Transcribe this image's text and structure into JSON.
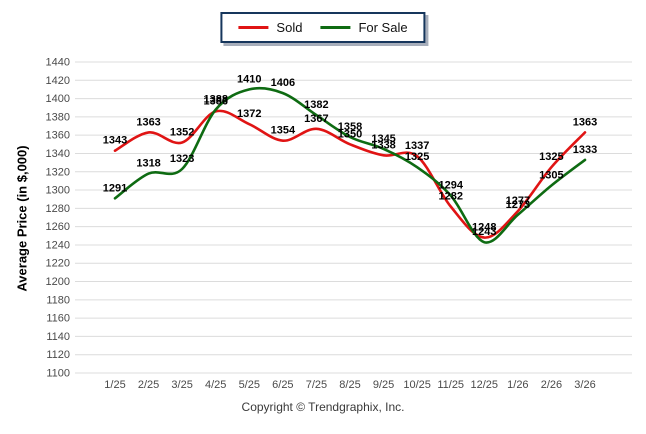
{
  "legend": {
    "items": [
      {
        "label": "Sold",
        "color": "#e01414"
      },
      {
        "label": "For Sale",
        "color": "#0e6b12"
      }
    ]
  },
  "chart_data": {
    "type": "line",
    "categories": [
      "1/25",
      "2/25",
      "3/25",
      "4/25",
      "5/25",
      "6/25",
      "7/25",
      "8/25",
      "9/25",
      "10/25",
      "11/25",
      "12/25",
      "1/26",
      "2/26",
      "3/26"
    ],
    "series": [
      {
        "name": "Sold",
        "color": "#e01414",
        "values": [
          1343,
          1363,
          1352,
          1386,
          1372,
          1354,
          1367,
          1350,
          1338,
          1337,
          1282,
          1248,
          1277,
          1325,
          1363
        ]
      },
      {
        "name": "For Sale",
        "color": "#0e6b12",
        "values": [
          1291,
          1318,
          1323,
          1388,
          1410,
          1406,
          1382,
          1358,
          1345,
          1325,
          1294,
          1243,
          1273,
          1305,
          1333
        ]
      }
    ],
    "title": "",
    "xlabel": "",
    "ylabel": "Average Price (in $,000)",
    "ylim": [
      1100,
      1440
    ],
    "ytick_step": 20,
    "grid": "horizontal",
    "gridline_color": "#dcdcdc",
    "tick_label_color": "#4a4a4a",
    "data_label_color": "#000000",
    "legend_position": "top-center",
    "smooth": true,
    "data_labels": true
  },
  "footer": {
    "copyright": "Copyright © Trendgraphix, Inc."
  }
}
